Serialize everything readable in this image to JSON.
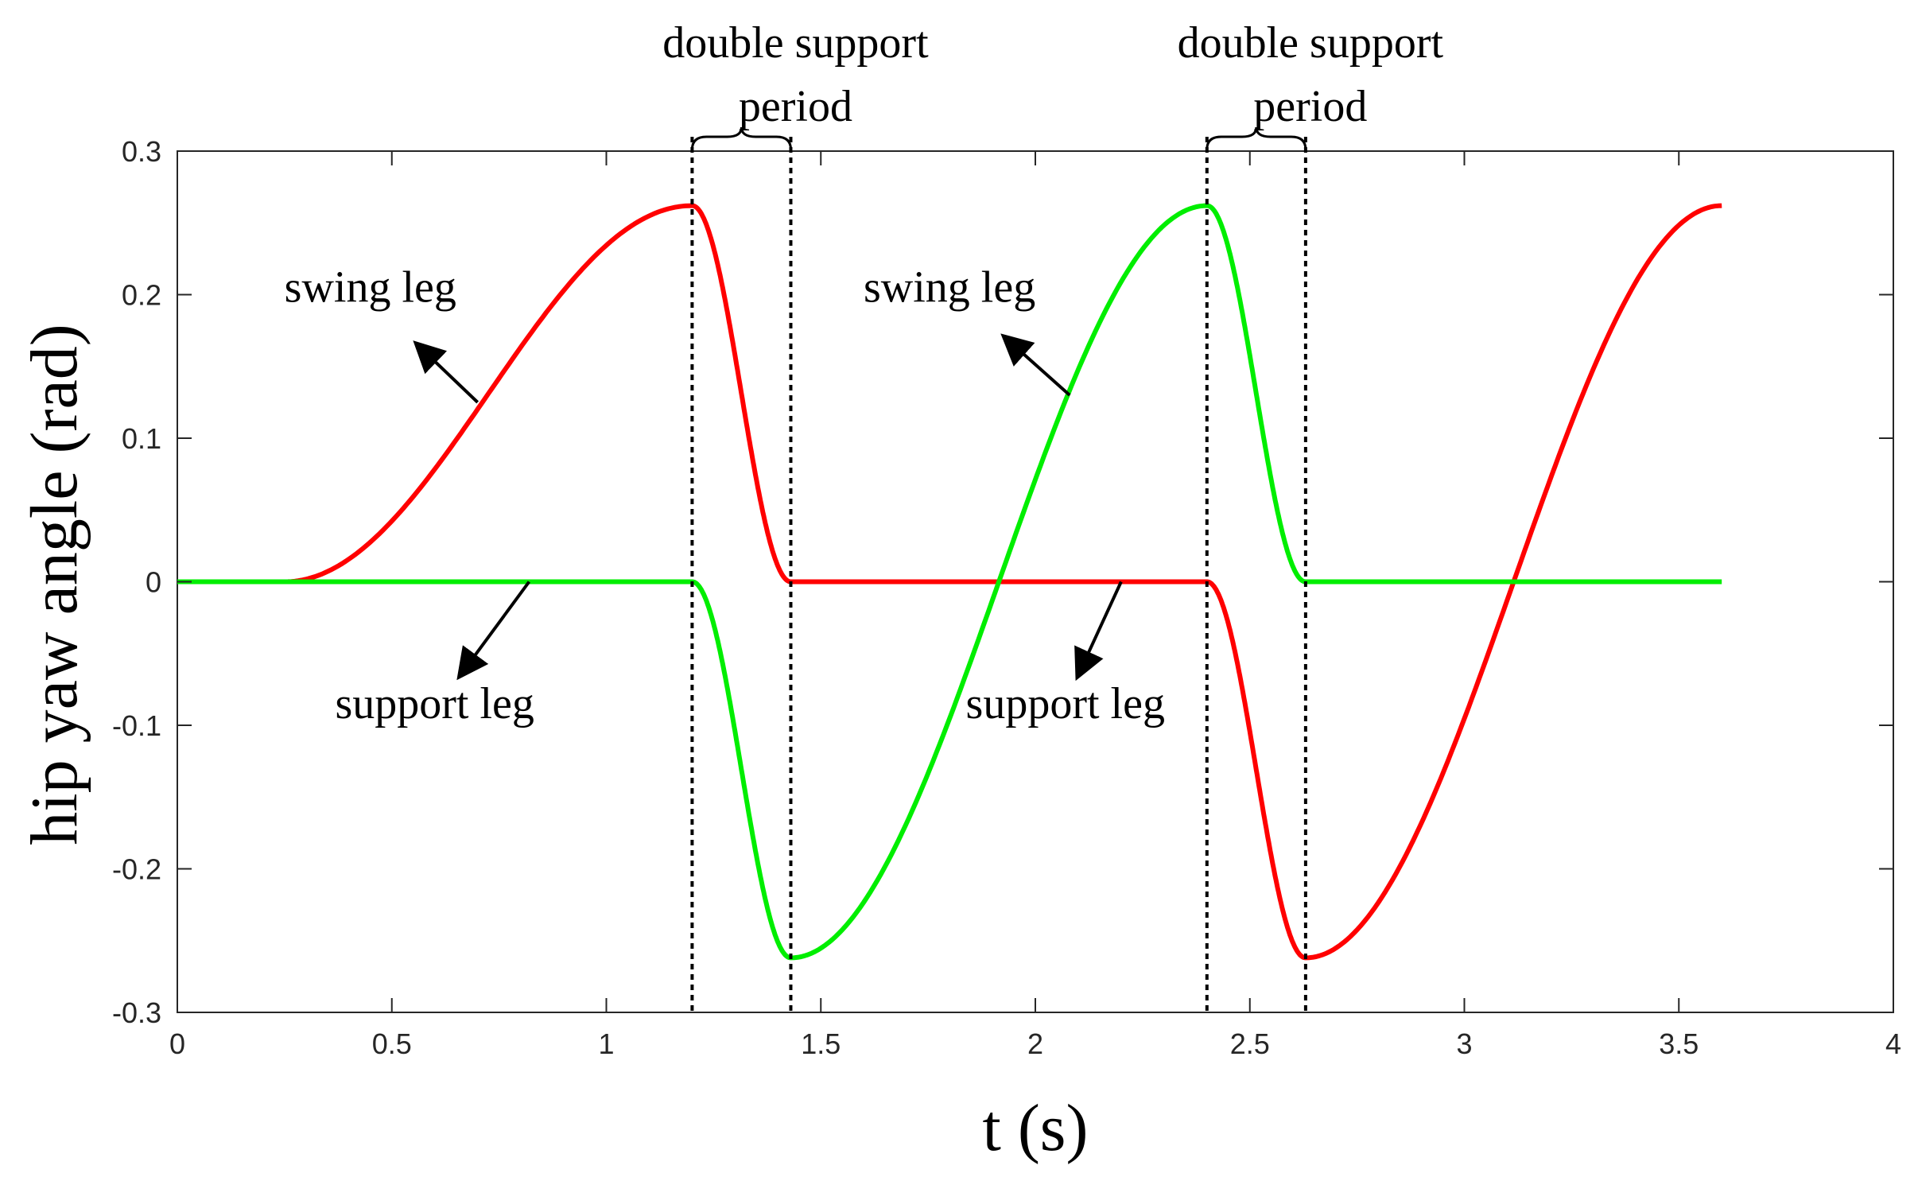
{
  "chart_data": {
    "type": "line",
    "xlabel": "t (s)",
    "ylabel": "hip yaw angle (rad)",
    "xlim": [
      0,
      4
    ],
    "ylim": [
      -0.3,
      0.3
    ],
    "xticks": [
      "0",
      "0.5",
      "1",
      "1.5",
      "2",
      "2.5",
      "3",
      "3.5",
      "4"
    ],
    "yticks": [
      "0.3",
      "0.2",
      "0.1",
      "0",
      "-0.1",
      "-0.2",
      "-0.3"
    ],
    "grid": false,
    "amplitude": 0.262,
    "double_support_periods": [
      [
        1.2,
        1.43
      ],
      [
        2.4,
        2.63
      ]
    ],
    "series": [
      {
        "color": "#ff0000",
        "segments": [
          {
            "kind": "rise",
            "t0": 0.25,
            "t1": 1.2,
            "from": 0,
            "to": 0.262
          },
          {
            "kind": "fall",
            "t0": 1.2,
            "t1": 1.43,
            "from": 0.262,
            "to": 0
          },
          {
            "kind": "hold",
            "t0": 1.43,
            "t1": 2.4,
            "from": 0,
            "to": 0
          },
          {
            "kind": "fall",
            "t0": 2.4,
            "t1": 2.63,
            "from": 0,
            "to": -0.262
          },
          {
            "kind": "rise",
            "t0": 2.63,
            "t1": 3.6,
            "from": -0.262,
            "to": 0.262
          }
        ]
      },
      {
        "color": "#00ee00",
        "segments": [
          {
            "kind": "hold",
            "t0": 0,
            "t1": 1.2,
            "from": 0,
            "to": 0
          },
          {
            "kind": "fall",
            "t0": 1.2,
            "t1": 1.43,
            "from": 0,
            "to": -0.262
          },
          {
            "kind": "rise",
            "t0": 1.43,
            "t1": 2.4,
            "from": -0.262,
            "to": 0.262
          },
          {
            "kind": "fall",
            "t0": 2.4,
            "t1": 2.63,
            "from": 0.262,
            "to": 0
          },
          {
            "kind": "hold",
            "t0": 2.63,
            "t1": 3.6,
            "from": 0,
            "to": 0
          }
        ]
      }
    ],
    "annotations": [
      {
        "name": "swing-leg-1",
        "text": "swing leg",
        "text_xy": [
          0.45,
          0.195
        ],
        "arrow_from": [
          0.7,
          0.125
        ],
        "arrow_to": [
          0.56,
          0.165
        ]
      },
      {
        "name": "swing-leg-2",
        "text": "swing leg",
        "text_xy": [
          1.8,
          0.195
        ],
        "arrow_from": [
          2.08,
          0.13
        ],
        "arrow_to": [
          1.93,
          0.17
        ]
      },
      {
        "name": "support-leg-1",
        "text": "support leg",
        "text_xy": [
          0.6,
          -0.095
        ],
        "arrow_from": [
          0.82,
          0
        ],
        "arrow_to": [
          0.66,
          -0.065
        ]
      },
      {
        "name": "support-leg-2",
        "text": "support leg",
        "text_xy": [
          2.07,
          -0.095
        ],
        "arrow_from": [
          2.2,
          0
        ],
        "arrow_to": [
          2.1,
          -0.065
        ]
      },
      {
        "name": "double-support-1",
        "text_lines": [
          "double support",
          "period"
        ],
        "t0": 1.2,
        "t1": 1.43
      },
      {
        "name": "double-support-2",
        "text_lines": [
          "double support",
          "period"
        ],
        "t0": 2.4,
        "t1": 2.63
      }
    ]
  }
}
